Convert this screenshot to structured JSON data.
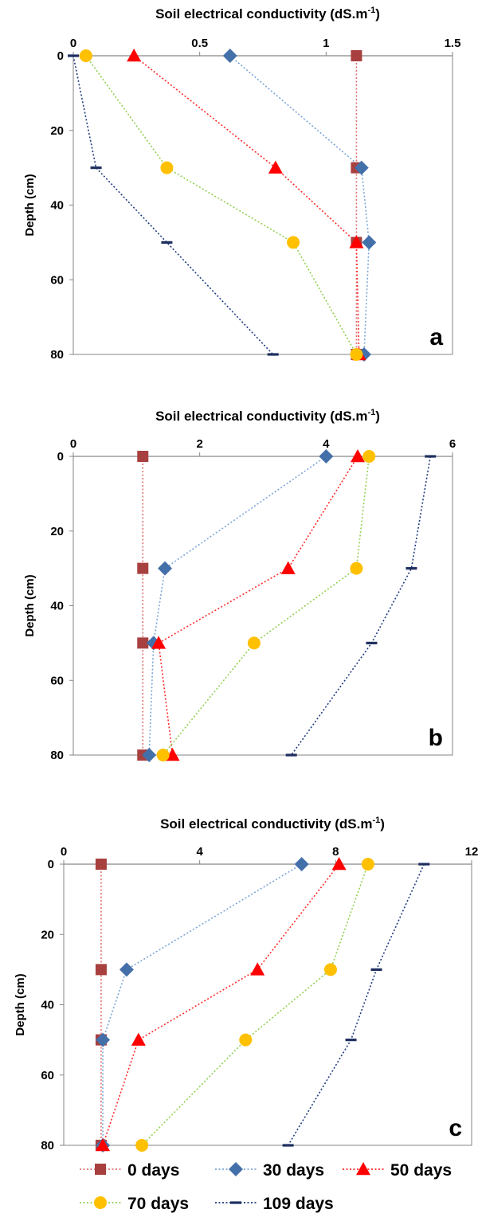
{
  "chart_data": [
    {
      "type": "line",
      "panel_label": "a",
      "title": "Soil electrical conductivity (dS.m",
      "title_superscript": "-1",
      "title_suffix": ")",
      "ylabel": "Depth (cm)",
      "xlim": [
        0,
        1.5
      ],
      "xticks": [
        0,
        0.5,
        1,
        1.5
      ],
      "xtick_labels": [
        "0",
        "0.5",
        "1",
        "1.5"
      ],
      "ylim": [
        0,
        80
      ],
      "yticks": [
        0,
        20,
        40,
        60,
        80
      ],
      "ytick_labels": [
        "0",
        "20",
        "40",
        "60",
        "80"
      ],
      "y_inverted": true,
      "x_axis_position": "top",
      "grid": false,
      "depth": [
        0,
        30,
        50,
        80
      ],
      "series": [
        {
          "key": "d0",
          "x": [
            1.12,
            1.12,
            1.12,
            1.12
          ]
        },
        {
          "key": "d30",
          "x": [
            0.62,
            1.14,
            1.17,
            1.15
          ]
        },
        {
          "key": "d50",
          "x": [
            0.24,
            0.8,
            1.12,
            1.13
          ]
        },
        {
          "key": "d70",
          "x": [
            0.05,
            0.37,
            0.87,
            1.12
          ]
        },
        {
          "key": "d109",
          "x": [
            0.0,
            0.09,
            0.37,
            0.79
          ]
        }
      ]
    },
    {
      "type": "line",
      "panel_label": "b",
      "title": "Soil electrical conductivity (dS.m",
      "title_superscript": "-1",
      "title_suffix": ")",
      "ylabel": "Depth (cm)",
      "xlim": [
        0,
        6
      ],
      "xticks": [
        0,
        2,
        4,
        6
      ],
      "xtick_labels": [
        "0",
        "2",
        "4",
        "6"
      ],
      "ylim": [
        0,
        80
      ],
      "yticks": [
        0,
        20,
        40,
        60,
        80
      ],
      "ytick_labels": [
        "0",
        "20",
        "40",
        "60",
        "80"
      ],
      "y_inverted": true,
      "x_axis_position": "top",
      "grid": false,
      "depth": [
        0,
        30,
        50,
        80
      ],
      "series": [
        {
          "key": "d0",
          "x": [
            1.1,
            1.1,
            1.1,
            1.1
          ]
        },
        {
          "key": "d30",
          "x": [
            4.0,
            1.45,
            1.27,
            1.2
          ]
        },
        {
          "key": "d50",
          "x": [
            4.5,
            3.4,
            1.35,
            1.57
          ]
        },
        {
          "key": "d70",
          "x": [
            4.68,
            4.48,
            2.86,
            1.42
          ]
        },
        {
          "key": "d109",
          "x": [
            5.65,
            5.35,
            4.72,
            3.45
          ]
        }
      ]
    },
    {
      "type": "line",
      "panel_label": "c",
      "title": "Soil electrical conductivity (dS.m",
      "title_superscript": "-1",
      "title_suffix": ")",
      "ylabel": "Depth (cm)",
      "xlim": [
        0,
        12
      ],
      "xticks": [
        0,
        4,
        8,
        12
      ],
      "xtick_labels": [
        "0",
        "4",
        "8",
        "12"
      ],
      "ylim": [
        0,
        80
      ],
      "yticks": [
        0,
        20,
        40,
        60,
        80
      ],
      "ytick_labels": [
        "0",
        "20",
        "40",
        "60",
        "80"
      ],
      "y_inverted": true,
      "x_axis_position": "top",
      "grid": false,
      "depth": [
        0,
        30,
        50,
        80
      ],
      "series": [
        {
          "key": "d0",
          "x": [
            1.1,
            1.1,
            1.1,
            1.1
          ]
        },
        {
          "key": "d30",
          "x": [
            7.0,
            1.85,
            1.15,
            1.15
          ]
        },
        {
          "key": "d50",
          "x": [
            8.1,
            5.7,
            2.2,
            1.15
          ]
        },
        {
          "key": "d70",
          "x": [
            8.95,
            7.85,
            5.35,
            2.3
          ]
        },
        {
          "key": "d109",
          "x": [
            10.6,
            9.2,
            8.45,
            6.6
          ]
        }
      ]
    }
  ],
  "legend": {
    "placement": "bottom",
    "items": [
      {
        "key": "d0",
        "label": "0 days",
        "color": "#a7403f",
        "marker": "square"
      },
      {
        "key": "d30",
        "label": "30 days",
        "color": "#4470aa",
        "marker": "diamond"
      },
      {
        "key": "d50",
        "label": "50 days",
        "color": "#ff0000",
        "marker": "triangle"
      },
      {
        "key": "d70",
        "label": "70 days",
        "color": "#ffc000",
        "marker": "circle"
      },
      {
        "key": "d109",
        "label": "109 days",
        "color": "#1f2f60",
        "marker": "dash"
      }
    ]
  },
  "line_colors": {
    "d0": "#e07070",
    "d30": "#7aa6d8",
    "d50": "#ff2a2a",
    "d70": "#92d050",
    "d109": "#1f3a80"
  }
}
